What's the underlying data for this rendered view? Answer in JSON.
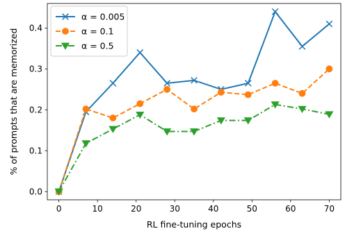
{
  "chart_data": {
    "type": "line",
    "xlabel": "RL fine-tuning epochs",
    "ylabel": "% of prompts that are memorized",
    "xlim": [
      -3,
      73
    ],
    "ylim": [
      -0.02,
      0.46
    ],
    "xticks": [
      0,
      10,
      20,
      30,
      40,
      50,
      60,
      70
    ],
    "yticks": [
      0.0,
      0.1,
      0.2,
      0.3,
      0.4
    ],
    "ytick_labels": [
      "0.0",
      "0.1",
      "0.2",
      "0.3",
      "0.4"
    ],
    "grid": false,
    "legend_position": "upper-left",
    "x": [
      0,
      7,
      14,
      21,
      28,
      35,
      42,
      49,
      56,
      63,
      70
    ],
    "series": [
      {
        "name": "α = 0.005",
        "color": "#1f77b4",
        "linestyle": "solid",
        "marker": "x",
        "values": [
          0.0,
          0.195,
          0.265,
          0.34,
          0.265,
          0.272,
          0.25,
          0.265,
          0.44,
          0.355,
          0.41
        ]
      },
      {
        "name": "α = 0.1",
        "color": "#ff7f0e",
        "linestyle": "dashed",
        "marker": "o",
        "values": [
          0.0,
          0.202,
          0.18,
          0.215,
          0.25,
          0.202,
          0.243,
          0.237,
          0.265,
          0.24,
          0.3
        ]
      },
      {
        "name": "α = 0.5",
        "color": "#2ca02c",
        "linestyle": "dashdot",
        "marker": "v",
        "values": [
          0.0,
          0.118,
          0.153,
          0.188,
          0.147,
          0.147,
          0.174,
          0.174,
          0.213,
          0.202,
          0.189
        ]
      }
    ]
  }
}
